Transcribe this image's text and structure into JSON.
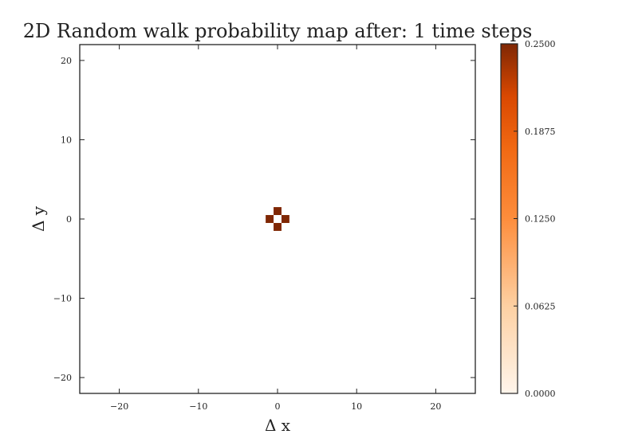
{
  "chart_data": {
    "type": "heatmap",
    "title": "2D Random walk probability map after: 1 time steps",
    "xlabel": "Δ x",
    "ylabel": "Δ y",
    "xlim": [
      -25,
      25
    ],
    "ylim": [
      -22,
      22
    ],
    "xticks": [
      -20,
      -10,
      0,
      10,
      20
    ],
    "yticks": [
      -20,
      -10,
      0,
      10,
      20
    ],
    "xtick_labels": [
      "−20",
      "−10",
      "0",
      "10",
      "20"
    ],
    "ytick_labels": [
      "−20",
      "−10",
      "0",
      "10",
      "20"
    ],
    "cells": [
      {
        "x": 0,
        "y": 1,
        "value": 0.25
      },
      {
        "x": -1,
        "y": 0,
        "value": 0.25
      },
      {
        "x": 1,
        "y": 0,
        "value": 0.25
      },
      {
        "x": 0,
        "y": -1,
        "value": 0.25
      }
    ],
    "grid": false,
    "colorbar": {
      "colormap": "Oranges",
      "min": 0.0,
      "max": 0.25,
      "ticks": [
        0.0,
        0.0625,
        0.125,
        0.1875,
        0.25
      ],
      "tick_labels": [
        "0.0000",
        "0.0625",
        "0.1250",
        "0.1875",
        "0.2500"
      ],
      "color_low": "#fff5eb",
      "color_mid": "#f16913",
      "color_high": "#7f2704"
    }
  }
}
